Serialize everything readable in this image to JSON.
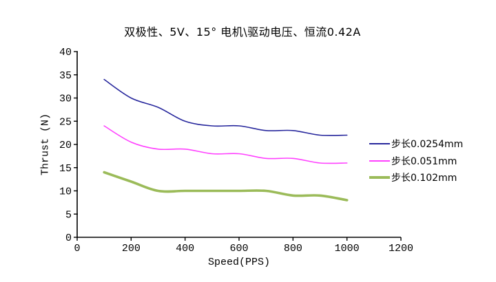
{
  "chart_data": {
    "type": "line",
    "title": "双极性、5V、15° 电机\\驱动电压、恒流0.42A",
    "xlabel": "Speed(PPS)",
    "ylabel": "Thrust (N)",
    "x": [
      100,
      200,
      300,
      400,
      500,
      600,
      700,
      800,
      900,
      1000
    ],
    "series": [
      {
        "name": "步长0.0254mm",
        "color": "#26269c",
        "line_width": 1.6,
        "values": [
          34,
          30,
          28,
          25,
          24,
          24,
          23,
          23,
          22,
          22
        ]
      },
      {
        "name": "步长0.051mm",
        "color": "#ff40ff",
        "line_width": 1.6,
        "values": [
          24,
          20.5,
          19,
          19,
          18,
          18,
          17,
          17,
          16,
          16
        ]
      },
      {
        "name": "步长0.102mm",
        "color": "#9bbb59",
        "line_width": 3.6,
        "values": [
          14,
          12,
          10,
          10,
          10,
          10,
          10,
          9,
          9,
          8
        ]
      }
    ],
    "xlim": [
      0,
      1200
    ],
    "ylim": [
      0,
      40
    ],
    "x_ticks": [
      0,
      200,
      400,
      600,
      800,
      1000,
      1200
    ],
    "y_ticks": [
      0,
      5,
      10,
      15,
      20,
      25,
      30,
      35,
      40
    ],
    "grid": false,
    "smooth": true,
    "legend_position": "right",
    "axis_color": "#000000",
    "background": "#ffffff"
  }
}
